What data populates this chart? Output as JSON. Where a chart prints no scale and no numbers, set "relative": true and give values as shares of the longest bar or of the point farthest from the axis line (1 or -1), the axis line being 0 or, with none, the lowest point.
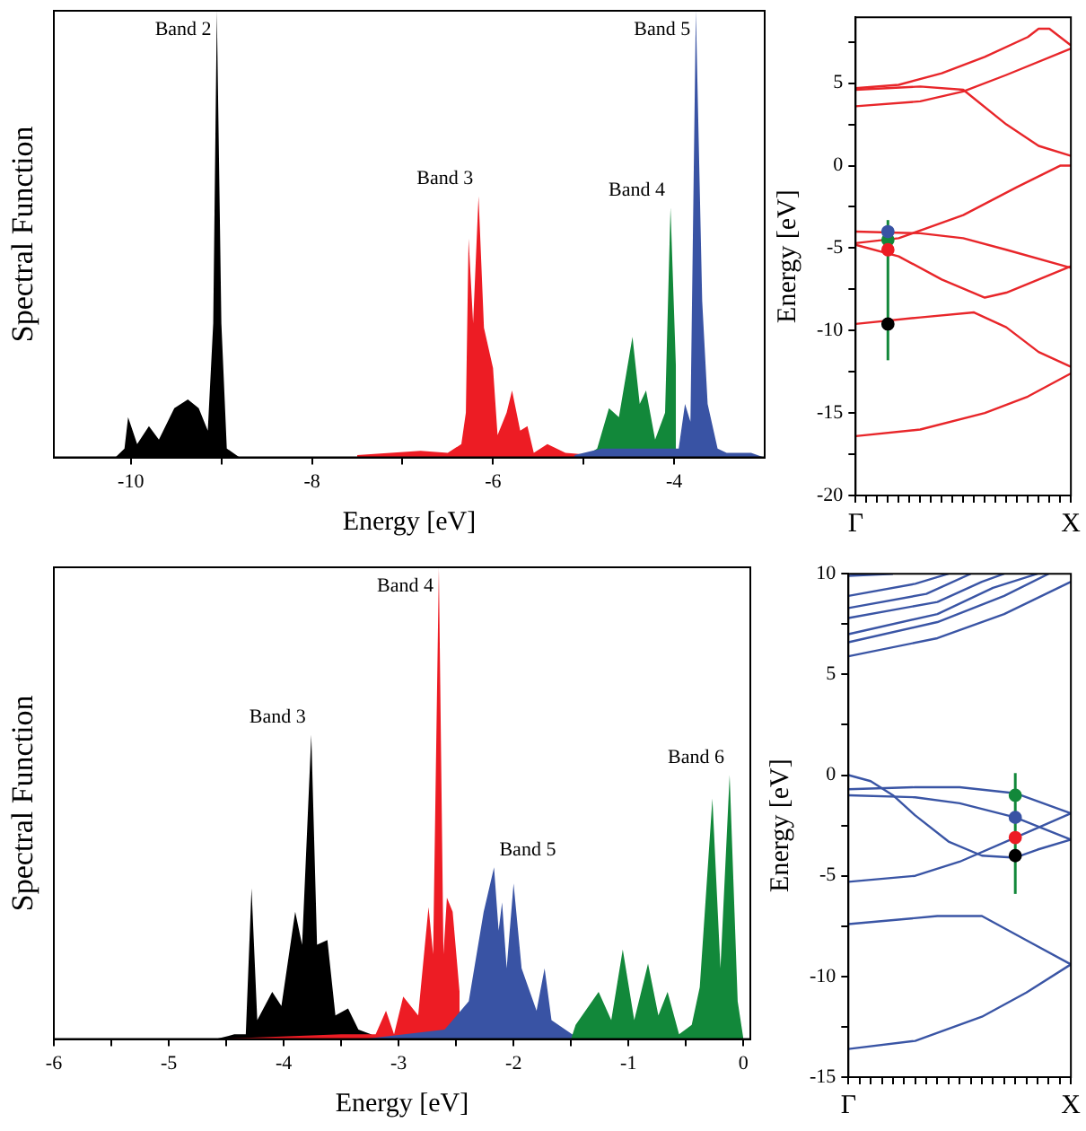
{
  "chart_data": [
    {
      "type": "area",
      "relative": true,
      "xlabel": "Energy [eV]",
      "ylabel": "Spectral Function",
      "xlim": [
        -10.85,
        -3.0
      ],
      "xticks": [
        -10,
        {
          "value": -9,
          "label": null
        },
        -8,
        {
          "value": -7,
          "label": null
        },
        -6,
        {
          "value": -5,
          "label": null
        },
        -4
      ],
      "series": [
        {
          "color": "#000000",
          "x": [
            -10.17,
            -10.07,
            -10.03,
            -9.93,
            -9.8,
            -9.69,
            -9.52,
            -9.37,
            -9.25,
            -9.15,
            -9.09,
            -9.05,
            -9.0,
            -8.94,
            -8.8
          ],
          "values": [
            0,
            0.02,
            0.09,
            0.03,
            0.07,
            0.04,
            0.11,
            0.13,
            0.11,
            0.06,
            0.3,
            1.0,
            0.3,
            0.02,
            0
          ]
        },
        {
          "color": "#ed1c24",
          "x": [
            -7.5,
            -6.8,
            -6.5,
            -6.35,
            -6.3,
            -6.27,
            -6.22,
            -6.16,
            -6.1,
            -6.0,
            -5.95,
            -5.85,
            -5.79,
            -5.7,
            -5.62,
            -5.55,
            -5.4,
            -5.2,
            -4.6
          ],
          "values": [
            0.005,
            0.015,
            0.01,
            0.03,
            0.1,
            0.49,
            0.3,
            0.585,
            0.29,
            0.2,
            0.05,
            0.1,
            0.15,
            0.06,
            0.07,
            0.01,
            0.03,
            0.01,
            0
          ]
        },
        {
          "color": "#12883a",
          "x": [
            -5.0,
            -4.85,
            -4.72,
            -4.61,
            -4.46,
            -4.38,
            -4.31,
            -4.21,
            -4.1,
            -4.04,
            -3.98
          ],
          "values": [
            0,
            0.02,
            0.11,
            0.09,
            0.27,
            0.12,
            0.15,
            0.04,
            0.1,
            0.56,
            0.2
          ]
        },
        {
          "color": "#3953a4",
          "x": [
            -5.1,
            -4.8,
            -3.95,
            -3.88,
            -3.82,
            -3.76,
            -3.69,
            -3.63,
            -3.52,
            -3.42,
            -3.15,
            -3.01
          ],
          "values": [
            0.005,
            0.02,
            0.02,
            0.12,
            0.08,
            1.0,
            0.35,
            0.12,
            0.02,
            0.01,
            0.01,
            0
          ]
        }
      ],
      "annotations": [
        "Band 2",
        "Band 3",
        "Band 4",
        "Band 5"
      ]
    },
    {
      "type": "line",
      "ylabel": "Energy [eV]",
      "categories": [
        "Γ",
        null,
        null,
        null,
        null,
        null,
        null,
        null,
        null,
        null,
        null,
        null,
        null,
        null,
        null,
        null,
        null,
        null,
        null,
        null,
        "X"
      ],
      "ylim": [
        -20,
        9
      ],
      "yticks": [
        -20,
        {
          "value": -17.5,
          "label": null
        },
        -15,
        {
          "value": -12.5,
          "label": null
        },
        -10,
        {
          "value": -7.5,
          "label": null
        },
        -5,
        {
          "value": -2.5,
          "label": null
        },
        0,
        {
          "value": 2.5,
          "label": null
        },
        5,
        {
          "value": 7.5,
          "label": null
        }
      ],
      "series": [
        {
          "color": "#e8262a",
          "values": [
            4.7,
            null,
            null,
            null,
            4.9,
            null,
            null,
            null,
            5.6,
            null,
            null,
            null,
            6.6,
            null,
            null,
            null,
            7.8,
            8.3,
            8.3,
            null,
            7.3
          ]
        },
        {
          "color": "#e8262a",
          "values": [
            4.6,
            null,
            null,
            null,
            null,
            null,
            4.8,
            null,
            null,
            null,
            4.6,
            null,
            null,
            null,
            2.5,
            null,
            null,
            1.2,
            null,
            null,
            0.6
          ]
        },
        {
          "color": "#e8262a",
          "values": [
            3.6,
            null,
            null,
            null,
            null,
            null,
            3.9,
            null,
            null,
            null,
            4.5,
            null,
            null,
            null,
            5.5,
            null,
            null,
            null,
            null,
            null,
            7.1
          ]
        },
        {
          "color": "#e8262a",
          "values": [
            -4.0,
            null,
            null,
            null,
            null,
            null,
            -4.1,
            null,
            null,
            null,
            -4.4,
            null,
            null,
            null,
            -5.1,
            null,
            null,
            null,
            null,
            null,
            -6.2
          ]
        },
        {
          "color": "#e8262a",
          "values": [
            -4.7,
            null,
            null,
            null,
            -4.4,
            null,
            null,
            null,
            null,
            null,
            -3.0,
            null,
            null,
            null,
            null,
            -1.3,
            null,
            null,
            null,
            0,
            0
          ]
        },
        {
          "color": "#e8262a",
          "values": [
            -4.8,
            null,
            null,
            null,
            -5.5,
            null,
            null,
            null,
            -6.9,
            null,
            null,
            null,
            -8.0,
            null,
            -7.7,
            null,
            null,
            null,
            null,
            null,
            -6.1
          ]
        },
        {
          "color": "#e8262a",
          "values": [
            -9.6,
            null,
            null,
            null,
            null,
            null,
            -9.2,
            null,
            null,
            null,
            null,
            -8.9,
            null,
            null,
            -9.8,
            null,
            null,
            -11.3,
            null,
            null,
            -12.2
          ]
        },
        {
          "color": "#e8262a",
          "values": [
            -16.4,
            null,
            null,
            null,
            null,
            null,
            -16.0,
            null,
            null,
            null,
            null,
            null,
            -15.0,
            null,
            null,
            null,
            -14.0,
            null,
            null,
            null,
            -12.6
          ]
        },
        {
          "type": "scatter",
          "marker": "circle",
          "color": "#12883a",
          "values": [
            null,
            null,
            null,
            -4.5,
            null,
            null,
            null,
            null,
            null,
            null,
            null,
            null,
            null,
            null,
            null,
            null,
            null,
            null,
            null,
            null,
            null
          ],
          "errors": [
            null,
            null,
            null,
            [
              -11.8,
              -3.3
            ],
            null,
            null,
            null,
            null,
            null,
            null,
            null,
            null,
            null,
            null,
            null,
            null,
            null,
            null,
            null,
            null,
            null
          ]
        },
        {
          "type": "scatter",
          "marker": "circle",
          "color": "#3953a4",
          "values": [
            null,
            null,
            null,
            -4.0,
            null,
            null,
            null,
            null,
            null,
            null,
            null,
            null,
            null,
            null,
            null,
            null,
            null,
            null,
            null,
            null,
            null
          ]
        },
        {
          "type": "scatter",
          "marker": "circle",
          "color": "#ed1c24",
          "values": [
            null,
            null,
            null,
            -5.1,
            null,
            null,
            null,
            null,
            null,
            null,
            null,
            null,
            null,
            null,
            null,
            null,
            null,
            null,
            null,
            null,
            null
          ]
        },
        {
          "type": "scatter",
          "marker": "circle",
          "color": "#000000",
          "values": [
            null,
            null,
            null,
            -9.6,
            null,
            null,
            null,
            null,
            null,
            null,
            null,
            null,
            null,
            null,
            null,
            null,
            null,
            null,
            null,
            null,
            null
          ]
        }
      ]
    },
    {
      "type": "area",
      "relative": true,
      "xlabel": "Energy [eV]",
      "ylabel": "Spectral Function",
      "xlim": [
        -6,
        0.06
      ],
      "xticks": [
        -6,
        {
          "value": -5.5,
          "label": null
        },
        -5,
        {
          "value": -4.5,
          "label": null
        },
        -4,
        {
          "value": -3.5,
          "label": null
        },
        -3,
        {
          "value": -2.5,
          "label": null
        },
        -2,
        {
          "value": -1.5,
          "label": null
        },
        -1,
        {
          "value": -0.5,
          "label": null
        },
        0
      ],
      "series": [
        {
          "color": "#000000",
          "x": [
            -4.59,
            -4.43,
            -4.33,
            -4.28,
            -4.23,
            -4.1,
            -4.02,
            -3.9,
            -3.84,
            -3.76,
            -3.71,
            -3.62,
            -3.55,
            -3.44,
            -3.35,
            -3.24,
            -3.19
          ],
          "values": [
            0,
            0.01,
            0.01,
            0.32,
            0.04,
            0.1,
            0.07,
            0.27,
            0.2,
            0.645,
            0.2,
            0.21,
            0.05,
            0.065,
            0.02,
            0.01,
            0
          ]
        },
        {
          "color": "#ed1c24",
          "x": [
            -4.6,
            -3.5,
            -3.2,
            -3.11,
            -3.04,
            -2.96,
            -2.83,
            -2.74,
            -2.7,
            -2.65,
            -2.61,
            -2.58,
            -2.53,
            -2.47
          ],
          "values": [
            0,
            0.01,
            0.01,
            0.06,
            0.01,
            0.09,
            0.05,
            0.28,
            0.18,
            1.0,
            0.18,
            0.3,
            0.27,
            0.1
          ]
        },
        {
          "color": "#3953a4",
          "x": [
            -3.3,
            -2.6,
            -2.39,
            -2.26,
            -2.17,
            -2.13,
            -2.1,
            -2.06,
            -2.0,
            -1.93,
            -1.8,
            -1.73,
            -1.67,
            -1.49,
            -1.38
          ],
          "values": [
            0,
            0.02,
            0.08,
            0.27,
            0.364,
            0.23,
            0.29,
            0.15,
            0.33,
            0.15,
            0.06,
            0.15,
            0.04,
            0.01,
            0
          ]
        },
        {
          "color": "#12883a",
          "x": [
            -1.5,
            -1.46,
            -1.26,
            -1.15,
            -1.05,
            -0.95,
            -0.83,
            -0.74,
            -0.66,
            -0.56,
            -0.45,
            -0.38,
            -0.27,
            -0.2,
            -0.12,
            -0.05,
            0
          ],
          "values": [
            0,
            0.03,
            0.1,
            0.04,
            0.19,
            0.04,
            0.16,
            0.05,
            0.1,
            0.01,
            0.03,
            0.11,
            0.51,
            0.15,
            0.56,
            0.08,
            0
          ]
        }
      ],
      "annotations": [
        "Band 3",
        "Band 4",
        "Band 5",
        "Band 6"
      ]
    },
    {
      "type": "line",
      "ylabel": "Energy [eV]",
      "categories": [
        "Γ",
        null,
        null,
        null,
        null,
        null,
        null,
        null,
        null,
        null,
        null,
        null,
        null,
        null,
        null,
        null,
        null,
        null,
        null,
        null,
        "X"
      ],
      "ylim": [
        -15,
        10
      ],
      "yticks": [
        -15,
        {
          "value": -12.5,
          "label": null
        },
        -10,
        {
          "value": -7.5,
          "label": null
        },
        -5,
        {
          "value": -2.5,
          "label": null
        },
        0,
        {
          "value": 2.5,
          "label": null
        },
        5,
        {
          "value": 7.5,
          "label": null
        },
        10
      ],
      "series": [
        {
          "color": "#3a55a5",
          "values": [
            5.9,
            null,
            null,
            null,
            null,
            null,
            null,
            null,
            6.8,
            null,
            null,
            null,
            null,
            null,
            8.0,
            null,
            null,
            null,
            null,
            null,
            9.6
          ]
        },
        {
          "color": "#3a55a5",
          "values": [
            6.6,
            null,
            null,
            null,
            null,
            null,
            null,
            null,
            7.6,
            null,
            null,
            null,
            null,
            null,
            8.9,
            null,
            null,
            null,
            10,
            null,
            null
          ]
        },
        {
          "color": "#3a55a5",
          "values": [
            7.0,
            null,
            null,
            null,
            null,
            null,
            null,
            null,
            8.0,
            null,
            null,
            null,
            null,
            9.3,
            null,
            null,
            null,
            10,
            null,
            null,
            null
          ]
        },
        {
          "color": "#3a55a5",
          "values": [
            7.8,
            null,
            null,
            null,
            null,
            null,
            null,
            null,
            8.6,
            null,
            null,
            null,
            9.6,
            null,
            10,
            null,
            null,
            null,
            null,
            null,
            null
          ]
        },
        {
          "color": "#3a55a5",
          "values": [
            8.3,
            null,
            null,
            null,
            null,
            null,
            null,
            9.0,
            null,
            null,
            null,
            10,
            null,
            null,
            null,
            null,
            null,
            null,
            null,
            null,
            null
          ]
        },
        {
          "color": "#3a55a5",
          "values": [
            8.9,
            null,
            null,
            null,
            null,
            null,
            9.5,
            null,
            null,
            10,
            null,
            null,
            null,
            null,
            null,
            null,
            null,
            null,
            null,
            null,
            null
          ]
        },
        {
          "color": "#3a55a5",
          "values": [
            9.9,
            null,
            null,
            null,
            10,
            null,
            null,
            null,
            null,
            null,
            null,
            null,
            null,
            null,
            null,
            null,
            null,
            null,
            null,
            null,
            null
          ]
        },
        {
          "color": "#3a55a5",
          "values": [
            0,
            null,
            -0.3,
            null,
            -1.0,
            null,
            -2.0,
            null,
            null,
            -3.3,
            null,
            null,
            -4.0,
            null,
            null,
            -4.1,
            null,
            -3.7,
            null,
            null,
            -3.2
          ]
        },
        {
          "color": "#3a55a5",
          "values": [
            -0.7,
            null,
            null,
            null,
            null,
            null,
            -0.6,
            null,
            null,
            null,
            -0.6,
            null,
            null,
            null,
            null,
            -0.9,
            null,
            null,
            null,
            null,
            -1.9
          ]
        },
        {
          "color": "#3a55a5",
          "values": [
            -1.0,
            null,
            null,
            null,
            null,
            null,
            -1.1,
            null,
            null,
            null,
            -1.4,
            null,
            null,
            null,
            null,
            -2.1,
            null,
            null,
            null,
            null,
            -3.2
          ]
        },
        {
          "color": "#3a55a5",
          "values": [
            -5.3,
            null,
            null,
            null,
            null,
            null,
            -5.0,
            null,
            null,
            null,
            -4.3,
            null,
            null,
            null,
            null,
            -3.1,
            null,
            null,
            null,
            null,
            -1.9
          ]
        },
        {
          "color": "#3a55a5",
          "values": [
            -7.4,
            null,
            null,
            null,
            null,
            null,
            null,
            null,
            -7.0,
            null,
            null,
            null,
            -7.0,
            null,
            null,
            null,
            -8.2,
            null,
            null,
            null,
            -9.4
          ]
        },
        {
          "color": "#3a55a5",
          "values": [
            -13.6,
            null,
            null,
            null,
            null,
            null,
            -13.2,
            null,
            null,
            null,
            null,
            null,
            -12.0,
            null,
            null,
            null,
            -10.8,
            null,
            null,
            null,
            -9.4
          ]
        },
        {
          "type": "scatter",
          "marker": "circle",
          "color": "#12883a",
          "values": [
            null,
            null,
            null,
            null,
            null,
            null,
            null,
            null,
            null,
            null,
            null,
            null,
            null,
            null,
            null,
            -1.0,
            null,
            null,
            null,
            null,
            null
          ],
          "errors": [
            null,
            null,
            null,
            null,
            null,
            null,
            null,
            null,
            null,
            null,
            null,
            null,
            null,
            null,
            null,
            [
              -5.9,
              0.1
            ],
            null,
            null,
            null,
            null,
            null
          ]
        },
        {
          "type": "scatter",
          "marker": "circle",
          "color": "#3953a4",
          "values": [
            null,
            null,
            null,
            null,
            null,
            null,
            null,
            null,
            null,
            null,
            null,
            null,
            null,
            null,
            null,
            -2.1,
            null,
            null,
            null,
            null,
            null
          ]
        },
        {
          "type": "scatter",
          "marker": "circle",
          "color": "#ed1c24",
          "values": [
            null,
            null,
            null,
            null,
            null,
            null,
            null,
            null,
            null,
            null,
            null,
            null,
            null,
            null,
            null,
            -3.1,
            null,
            null,
            null,
            null,
            null
          ]
        },
        {
          "type": "scatter",
          "marker": "circle",
          "color": "#000000",
          "values": [
            null,
            null,
            null,
            null,
            null,
            null,
            null,
            null,
            null,
            null,
            null,
            null,
            null,
            null,
            null,
            -4.0,
            null,
            null,
            null,
            null,
            null
          ]
        }
      ]
    }
  ]
}
